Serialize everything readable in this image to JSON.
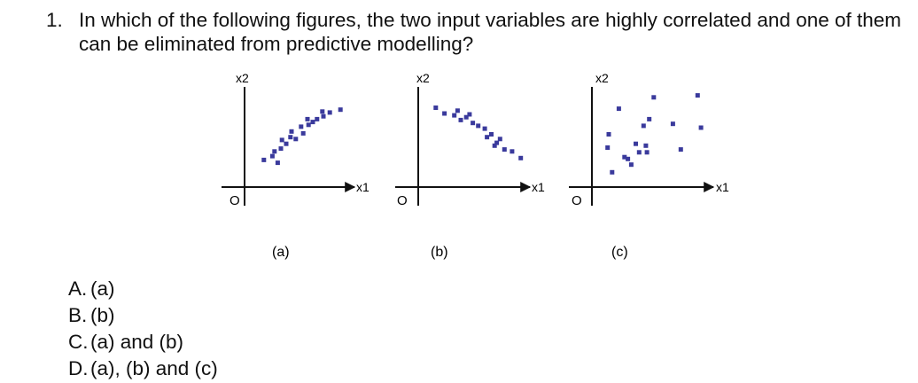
{
  "question": {
    "number": "1.",
    "text": "In which of the following figures, the two input variables are highly correlated and one of them can be eliminated from predictive modelling?"
  },
  "figures": [
    {
      "caption": "(a)",
      "x_axis_label": "x1",
      "y_axis_label": "x2",
      "origin_label": "O",
      "point_color": "#3a3a9c",
      "chart_data": {
        "type": "scatter",
        "xlim": [
          0,
          10
        ],
        "ylim": [
          0,
          10
        ],
        "points": [
          [
            1.4,
            2.3
          ],
          [
            2.2,
            2.7
          ],
          [
            2.7,
            2.0
          ],
          [
            3.0,
            3.5
          ],
          [
            3.5,
            4.0
          ],
          [
            3.1,
            4.4
          ],
          [
            3.9,
            4.7
          ],
          [
            4.4,
            4.5
          ],
          [
            4.0,
            5.3
          ],
          [
            5.1,
            5.1
          ],
          [
            4.9,
            5.8
          ],
          [
            5.6,
            6.0
          ],
          [
            6.0,
            6.3
          ],
          [
            5.5,
            6.6
          ],
          [
            6.4,
            6.6
          ],
          [
            7.0,
            6.9
          ],
          [
            7.6,
            7.3
          ],
          [
            8.6,
            7.6
          ],
          [
            2.4,
            3.2
          ],
          [
            6.9,
            7.4
          ]
        ]
      }
    },
    {
      "caption": "(b)",
      "x_axis_label": "x1",
      "y_axis_label": "x2",
      "origin_label": "O",
      "point_color": "#3a3a9c",
      "chart_data": {
        "type": "scatter",
        "xlim": [
          0,
          10
        ],
        "ylim": [
          0,
          10
        ],
        "points": [
          [
            1.2,
            7.8
          ],
          [
            2.0,
            7.2
          ],
          [
            2.9,
            7.0
          ],
          [
            3.5,
            6.5
          ],
          [
            3.2,
            7.5
          ],
          [
            4.3,
            7.1
          ],
          [
            4.6,
            6.2
          ],
          [
            5.1,
            5.9
          ],
          [
            5.7,
            5.6
          ],
          [
            5.9,
            4.7
          ],
          [
            6.3,
            5.0
          ],
          [
            6.8,
            4.1
          ],
          [
            7.1,
            4.5
          ],
          [
            7.5,
            3.4
          ],
          [
            8.2,
            3.2
          ],
          [
            9.0,
            2.5
          ],
          [
            4.0,
            6.8
          ],
          [
            6.6,
            3.8
          ]
        ]
      }
    },
    {
      "caption": "(c)",
      "x_axis_label": "x1",
      "y_axis_label": "x2",
      "origin_label": "O",
      "point_color": "#3a3a9c",
      "chart_data": {
        "type": "scatter",
        "xlim": [
          0,
          10
        ],
        "ylim": [
          0,
          10
        ],
        "points": [
          [
            2.0,
            7.7
          ],
          [
            1.1,
            5.0
          ],
          [
            1.0,
            3.6
          ],
          [
            2.5,
            2.6
          ],
          [
            3.1,
            1.8
          ],
          [
            1.4,
            1.0
          ],
          [
            3.5,
            4.0
          ],
          [
            3.8,
            3.1
          ],
          [
            4.5,
            3.1
          ],
          [
            4.7,
            6.6
          ],
          [
            4.2,
            5.9
          ],
          [
            5.1,
            8.9
          ],
          [
            6.8,
            6.1
          ],
          [
            7.5,
            3.4
          ],
          [
            9.0,
            9.1
          ],
          [
            9.3,
            5.7
          ],
          [
            4.4,
            3.8
          ],
          [
            2.8,
            2.4
          ]
        ]
      }
    }
  ],
  "options": [
    {
      "letter": "A.",
      "text": "(a)"
    },
    {
      "letter": "B.",
      "text": "(b)"
    },
    {
      "letter": "C.",
      "text": "(a) and (b)"
    },
    {
      "letter": "D.",
      "text": "(a), (b) and (c)"
    }
  ]
}
